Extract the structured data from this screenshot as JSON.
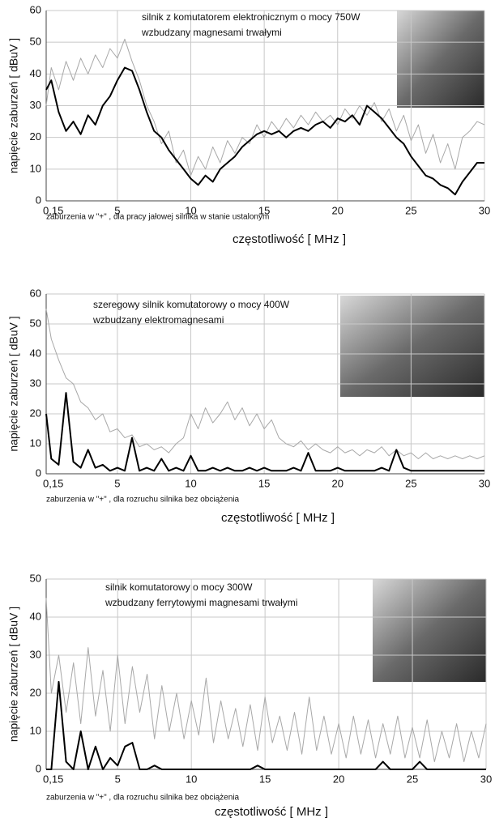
{
  "chart_data": [
    {
      "type": "line",
      "title": [
        "silnik z komutatorem elektronicznym o mocy 750W",
        "wzbudzany magnesami trwałymi"
      ],
      "note": "zaburzenia w \"+\" , dla pracy jałowej silnika w stanie ustalonym",
      "xlabel": "częstotliwość  [ MHz ]",
      "ylabel": "napięcie zaburzeń  [ dBuV ]",
      "xlim": [
        0.15,
        30
      ],
      "ylim": [
        0,
        60
      ],
      "xticks": [
        {
          "value": 0.15,
          "label": "0,15"
        },
        5,
        10,
        15,
        20,
        25,
        30
      ],
      "yticks": [
        0,
        10,
        20,
        30,
        40,
        50,
        60
      ],
      "grid": true,
      "x": [
        0.15,
        0.5,
        1,
        1.5,
        2,
        2.5,
        3,
        3.5,
        4,
        4.5,
        5,
        5.5,
        6,
        6.5,
        7,
        7.5,
        8,
        8.5,
        9,
        9.5,
        10,
        10.5,
        11,
        11.5,
        12,
        12.5,
        13,
        13.5,
        14,
        14.5,
        15,
        15.5,
        16,
        16.5,
        17,
        17.5,
        18,
        18.5,
        19,
        19.5,
        20,
        20.5,
        21,
        21.5,
        22,
        22.5,
        23,
        23.5,
        24,
        24.5,
        25,
        25.5,
        26,
        26.5,
        27,
        27.5,
        28,
        28.5,
        29,
        29.5,
        30
      ],
      "series": [
        {
          "color": "#a8a8a8",
          "values": [
            30,
            42,
            35,
            44,
            38,
            45,
            40,
            46,
            42,
            48,
            45,
            51,
            44,
            38,
            30,
            25,
            18,
            22,
            12,
            16,
            8,
            14,
            10,
            17,
            12,
            19,
            15,
            20,
            18,
            24,
            20,
            25,
            22,
            26,
            23,
            27,
            24,
            28,
            25,
            27,
            24,
            29,
            26,
            30,
            27,
            31,
            25,
            29,
            22,
            27,
            19,
            24,
            15,
            21,
            12,
            18,
            10,
            20,
            22,
            25,
            24
          ]
        },
        {
          "color": "#000000",
          "values": [
            35,
            38,
            28,
            22,
            25,
            21,
            27,
            24,
            30,
            33,
            38,
            42,
            41,
            35,
            28,
            22,
            20,
            16,
            13,
            10,
            7,
            5,
            8,
            6,
            10,
            12,
            14,
            17,
            19,
            21,
            22,
            21,
            22,
            20,
            22,
            23,
            22,
            24,
            25,
            23,
            26,
            25,
            27,
            24,
            30,
            28,
            26,
            23,
            20,
            18,
            14,
            11,
            8,
            7,
            5,
            4,
            2,
            6,
            9,
            12,
            12
          ]
        }
      ]
    },
    {
      "type": "line",
      "title": [
        "szeregowy silnik komutatorowy o mocy 400W",
        "wzbudzany elektromagnesami"
      ],
      "note": "zaburzenia w \"+\" , dla rozruchu silnika bez obciążenia",
      "xlabel": "częstotliwość  [ MHz ]",
      "ylabel": "napięcie zaburzeń  [ dBuV ]",
      "xlim": [
        0.15,
        30
      ],
      "ylim": [
        0,
        60
      ],
      "xticks": [
        {
          "value": 0.15,
          "label": "0,15"
        },
        5,
        10,
        15,
        20,
        25,
        30
      ],
      "yticks": [
        0,
        10,
        20,
        30,
        40,
        50,
        60
      ],
      "grid": true,
      "x": [
        0.15,
        0.5,
        1,
        1.5,
        2,
        2.5,
        3,
        3.5,
        4,
        4.5,
        5,
        5.5,
        6,
        6.5,
        7,
        7.5,
        8,
        8.5,
        9,
        9.5,
        10,
        10.5,
        11,
        11.5,
        12,
        12.5,
        13,
        13.5,
        14,
        14.5,
        15,
        15.5,
        16,
        16.5,
        17,
        17.5,
        18,
        18.5,
        19,
        19.5,
        20,
        20.5,
        21,
        21.5,
        22,
        22.5,
        23,
        23.5,
        24,
        24.5,
        25,
        25.5,
        26,
        26.5,
        27,
        27.5,
        28,
        28.5,
        29,
        29.5,
        30
      ],
      "series": [
        {
          "color": "#a8a8a8",
          "values": [
            55,
            45,
            38,
            32,
            30,
            24,
            22,
            18,
            20,
            14,
            15,
            12,
            13,
            9,
            10,
            8,
            9,
            7,
            10,
            12,
            20,
            15,
            22,
            17,
            20,
            24,
            18,
            22,
            16,
            20,
            15,
            18,
            12,
            10,
            9,
            11,
            8,
            10,
            8,
            7,
            9,
            7,
            8,
            6,
            8,
            7,
            9,
            6,
            8,
            6,
            7,
            5,
            7,
            5,
            6,
            5,
            6,
            5,
            6,
            5,
            6
          ]
        },
        {
          "color": "#000000",
          "values": [
            20,
            5,
            3,
            27,
            4,
            2,
            8,
            2,
            3,
            1,
            2,
            1,
            12,
            1,
            2,
            1,
            5,
            1,
            2,
            1,
            6,
            1,
            1,
            2,
            1,
            2,
            1,
            1,
            2,
            1,
            2,
            1,
            1,
            1,
            2,
            1,
            7,
            1,
            1,
            1,
            2,
            1,
            1,
            1,
            1,
            1,
            2,
            1,
            8,
            2,
            1,
            1,
            1,
            1,
            1,
            1,
            1,
            1,
            1,
            1,
            1
          ]
        }
      ]
    },
    {
      "type": "line",
      "title": [
        "silnik komutatorowy o mocy 300W",
        "wzbudzany ferrytowymi magnesami trwałymi"
      ],
      "note": "zaburzenia w \"+\" , dla rozruchu silnika bez obciążenia",
      "xlabel": "częstotliwość  [ MHz ]",
      "ylabel": "napięcie zaburzeń  [ dBuV ]",
      "xlim": [
        0.15,
        30
      ],
      "ylim": [
        0,
        50
      ],
      "xticks": [
        {
          "value": 0.15,
          "label": "0,15"
        },
        5,
        10,
        15,
        20,
        25,
        30
      ],
      "yticks": [
        0,
        10,
        20,
        30,
        40,
        50
      ],
      "grid": true,
      "x": [
        0.15,
        0.5,
        1,
        1.5,
        2,
        2.5,
        3,
        3.5,
        4,
        4.5,
        5,
        5.5,
        6,
        6.5,
        7,
        7.5,
        8,
        8.5,
        9,
        9.5,
        10,
        10.5,
        11,
        11.5,
        12,
        12.5,
        13,
        13.5,
        14,
        14.5,
        15,
        15.5,
        16,
        16.5,
        17,
        17.5,
        18,
        18.5,
        19,
        19.5,
        20,
        20.5,
        21,
        21.5,
        22,
        22.5,
        23,
        23.5,
        24,
        24.5,
        25,
        25.5,
        26,
        26.5,
        27,
        27.5,
        28,
        28.5,
        29,
        29.5,
        30
      ],
      "series": [
        {
          "color": "#a8a8a8",
          "values": [
            45,
            20,
            30,
            15,
            28,
            12,
            32,
            14,
            26,
            10,
            30,
            12,
            27,
            15,
            25,
            8,
            22,
            10,
            20,
            8,
            18,
            9,
            24,
            7,
            18,
            8,
            16,
            6,
            17,
            5,
            19,
            7,
            14,
            5,
            15,
            4,
            19,
            5,
            14,
            4,
            12,
            3,
            14,
            4,
            13,
            3,
            12,
            4,
            14,
            3,
            11,
            3,
            13,
            2,
            10,
            3,
            12,
            2,
            10,
            3,
            12
          ]
        },
        {
          "color": "#000000",
          "values": [
            0,
            0,
            23,
            2,
            0,
            10,
            0,
            6,
            0,
            3,
            1,
            6,
            7,
            0,
            0,
            1,
            0,
            0,
            0,
            0,
            0,
            0,
            0,
            0,
            0,
            0,
            0,
            0,
            0,
            1,
            0,
            0,
            0,
            0,
            0,
            0,
            0,
            0,
            0,
            0,
            0,
            0,
            0,
            0,
            0,
            0,
            2,
            0,
            0,
            0,
            0,
            2,
            0,
            0,
            0,
            0,
            0,
            0,
            0,
            0,
            0
          ]
        }
      ]
    }
  ]
}
